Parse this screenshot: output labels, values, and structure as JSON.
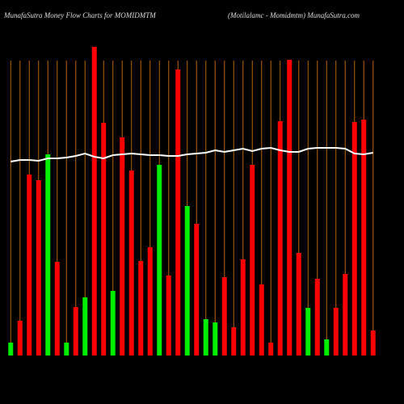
{
  "chart_data": {
    "type": "bar",
    "title": "MunafaSutra  Money Flow  Charts for MOMIDMTM",
    "subtitle": "(Motilalamc - Momidmtm) MunafaSutra.com",
    "categories": [
      null,
      null,
      null,
      null,
      null,
      null,
      null,
      null,
      null,
      null,
      null,
      null,
      null,
      null,
      null,
      null,
      null,
      null,
      null,
      null,
      null,
      null,
      null,
      null,
      null,
      null,
      null,
      null,
      null,
      null,
      null,
      null,
      null,
      null,
      null,
      null,
      null,
      null,
      null,
      null
    ],
    "values": [
      16,
      43,
      224,
      217,
      249,
      116,
      16,
      60,
      72,
      382,
      288,
      80,
      270,
      229,
      117,
      134,
      236,
      99,
      354,
      185,
      163,
      45,
      41,
      97,
      35,
      119,
      236,
      88,
      16,
      290,
      366,
      127,
      59,
      95,
      20,
      59,
      101,
      289,
      292,
      31
    ],
    "colors": [
      "#00ee00",
      "#ff0000",
      "#ff0000",
      "#ff0000",
      "#00ee00",
      "#ff0000",
      "#00ee00",
      "#ff0000",
      "#00ee00",
      "#ff0000",
      "#ff0000",
      "#00ee00",
      "#ff0000",
      "#ff0000",
      "#ff0000",
      "#ff0000",
      "#00ee00",
      "#ff0000",
      "#ff0000",
      "#00ee00",
      "#ff0000",
      "#00ee00",
      "#00ee00",
      "#ff0000",
      "#ff0000",
      "#ff0000",
      "#ff0000",
      "#ff0000",
      "#ff0000",
      "#ff0000",
      "#ff0000",
      "#ff0000",
      "#00ee00",
      "#ff0000",
      "#00ee00",
      "#ff0000",
      "#ff0000",
      "#ff0000",
      "#ff0000",
      "#ff0000"
    ],
    "line_values": [
      240,
      242,
      242,
      241,
      244,
      244,
      245,
      247,
      250,
      246,
      244,
      248,
      249,
      250,
      249,
      248,
      248,
      247,
      247,
      249,
      250,
      251,
      254,
      252,
      254,
      256,
      253,
      256,
      257,
      254,
      252,
      252,
      256,
      257,
      257,
      257,
      256,
      250,
      249,
      251
    ],
    "line_color": "#ffffff",
    "ylim": [
      0,
      390
    ],
    "grid": true,
    "grid_color": "#b8650a",
    "background": "#000000"
  }
}
